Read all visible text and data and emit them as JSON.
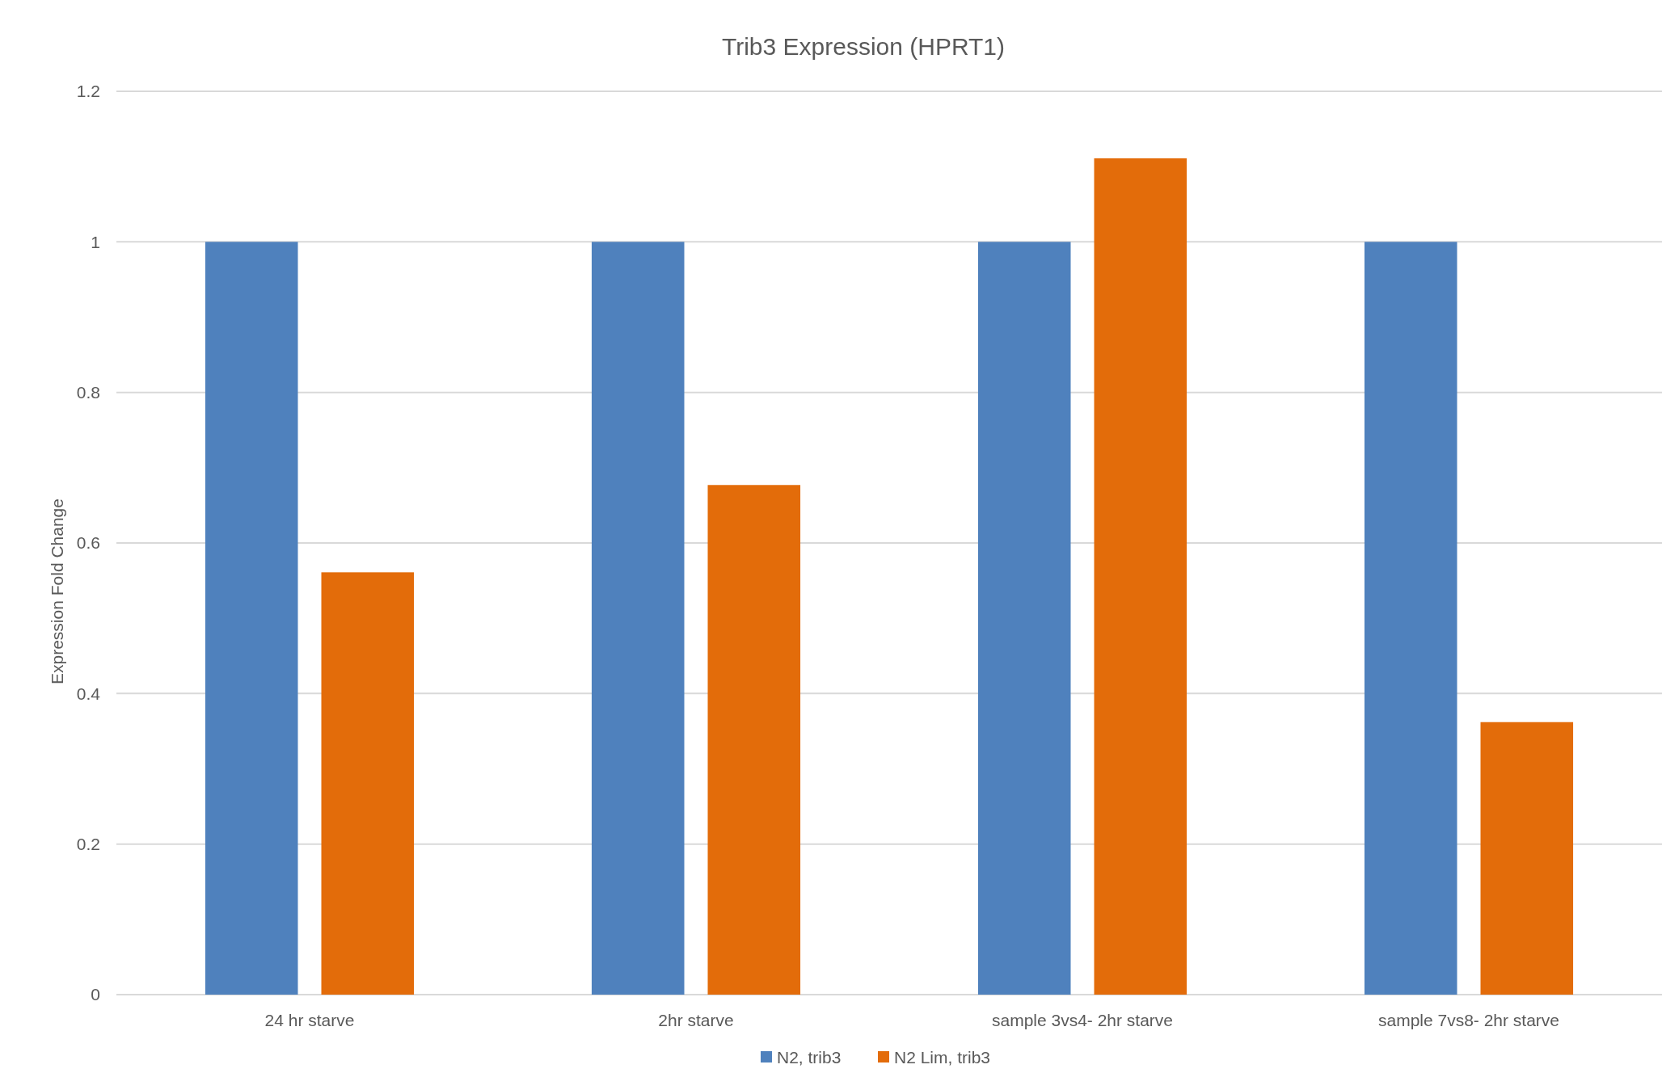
{
  "chart_data": {
    "type": "bar",
    "title": "Trib3 Expression (HPRT1)",
    "ylabel": "Expression Fold Change",
    "categories": [
      "24 hr starve",
      "2hr starve",
      "sample 3vs4- 2hr starve",
      "sample 7vs8- 2hr starve"
    ],
    "series": [
      {
        "name": "N2, trib3",
        "color": "#4f81bd",
        "values": [
          1,
          1,
          1,
          1
        ]
      },
      {
        "name": "N2 Lim, trib3",
        "color": "#e36c0a",
        "values": [
          0.561,
          0.677,
          1.111,
          0.362
        ]
      }
    ],
    "ylim": [
      0,
      1.2
    ],
    "yticks": [
      0,
      0.2,
      0.4,
      0.6,
      0.8,
      1,
      1.2
    ],
    "grid": "y",
    "legend": "bottom"
  }
}
